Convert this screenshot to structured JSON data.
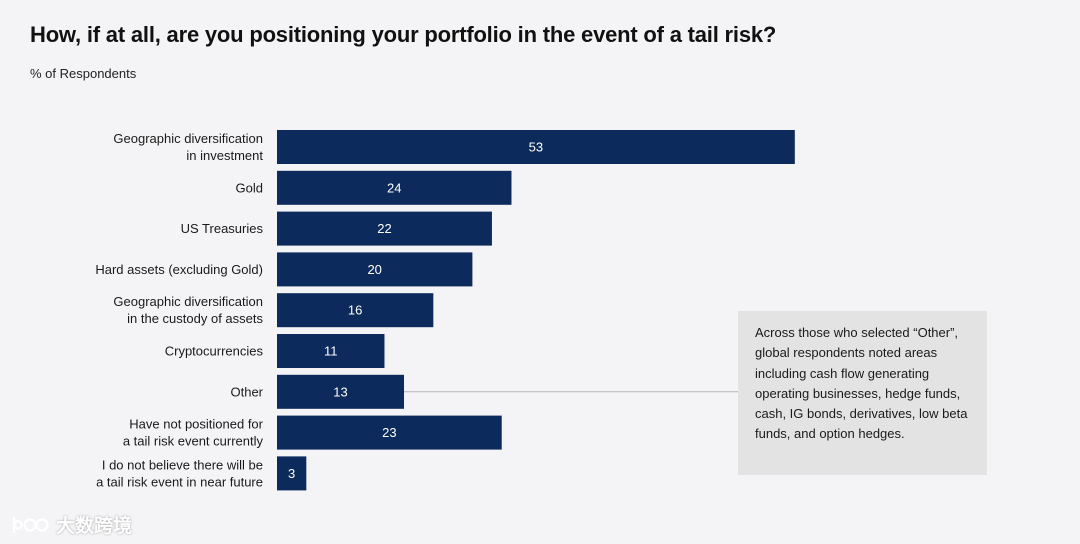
{
  "chart_data": {
    "type": "bar",
    "orientation": "horizontal",
    "title": "How, if at all, are you positioning your portfolio in the event of a tail risk?",
    "subtitle": "% of Respondents",
    "xlabel": "",
    "ylabel": "",
    "xlim": [
      0,
      56
    ],
    "categories": [
      [
        "Geographic diversification",
        "in investment"
      ],
      [
        "Gold"
      ],
      [
        "US Treasuries"
      ],
      [
        "Hard assets (excluding Gold)"
      ],
      [
        "Geographic diversification",
        "in the custody of assets"
      ],
      [
        "Cryptocurrencies"
      ],
      [
        "Other"
      ],
      [
        "Have not positioned for",
        "a tail risk event currently"
      ],
      [
        "I do not believe there will be",
        "a tail risk event in near future"
      ]
    ],
    "values": [
      53,
      24,
      22,
      20,
      16,
      11,
      13,
      23,
      3
    ],
    "bar_color": "#0d2a5c",
    "annotation": {
      "target_category": "Other",
      "text": "Across those who selected “Other”, global respondents noted areas including cash flow generating operating businesses, hedge funds, cash, IG bonds, derivatives, low beta funds, and option hedges."
    }
  },
  "watermark": {
    "text": "大数跨境"
  },
  "colors": {
    "background": "#f4f4f6",
    "bar": "#0d2a5c",
    "annotation_bg": "#e3e3e3",
    "leader_line": "#b3b3b3"
  }
}
